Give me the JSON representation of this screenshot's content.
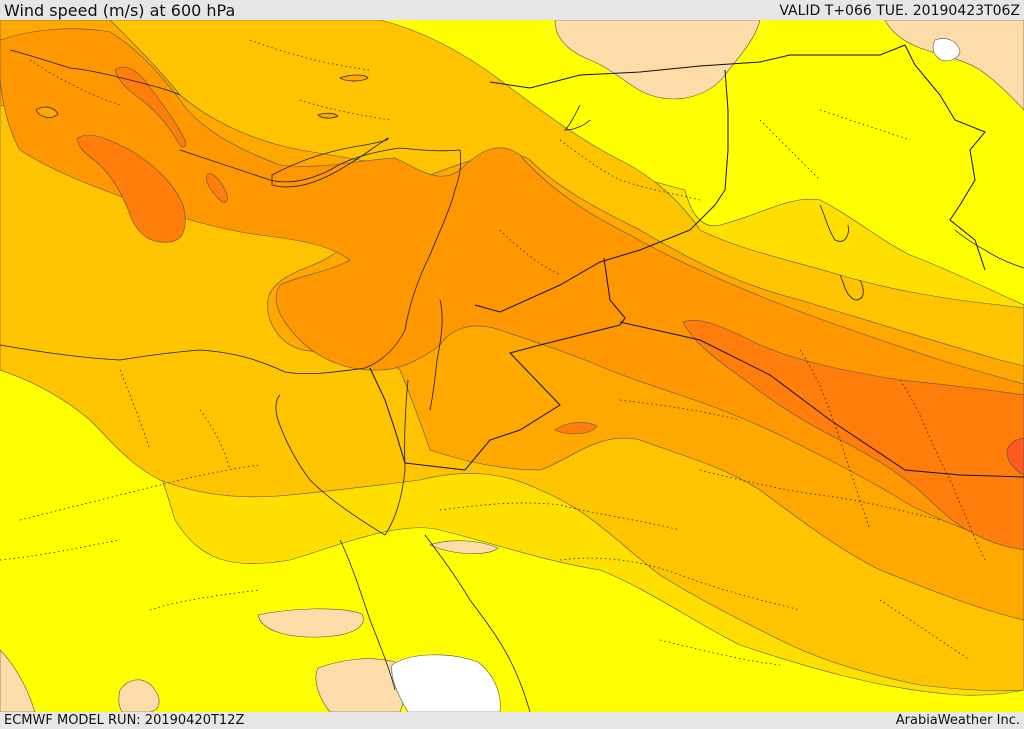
{
  "header": {
    "title": "Wind speed (m/s) at 600 hPa",
    "valid": "VALID T+066 TUE. 20190423T06Z"
  },
  "footer": {
    "model_run": "ECMWF MODEL RUN: 20190420T12Z",
    "credit": "ArabiaWeather Inc."
  },
  "map": {
    "variable": "wind speed",
    "level": "600 hPa",
    "units": "m/s",
    "colors": {
      "white": "#ffffff",
      "tan": "#fcdca8",
      "yellow": "#ffff00",
      "gold": "#ffdf00",
      "amber": "#ffc400",
      "orange_light": "#ffa800",
      "orange": "#ff9800",
      "orange_deep": "#ff7d0a",
      "red_orange": "#ff5a20",
      "contour": "#555555",
      "coastline": "#1a1a1a"
    }
  }
}
